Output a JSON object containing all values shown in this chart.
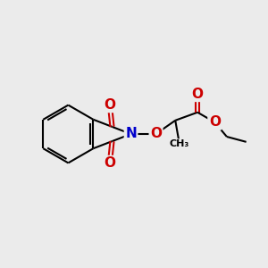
{
  "bg_color": "#ebebeb",
  "bond_color": "#000000",
  "N_color": "#0000cc",
  "O_color": "#cc0000",
  "bond_width": 1.5,
  "fig_size": [
    3.0,
    3.0
  ],
  "dpi": 100,
  "xlim": [
    0,
    10
  ],
  "ylim": [
    0,
    10
  ]
}
